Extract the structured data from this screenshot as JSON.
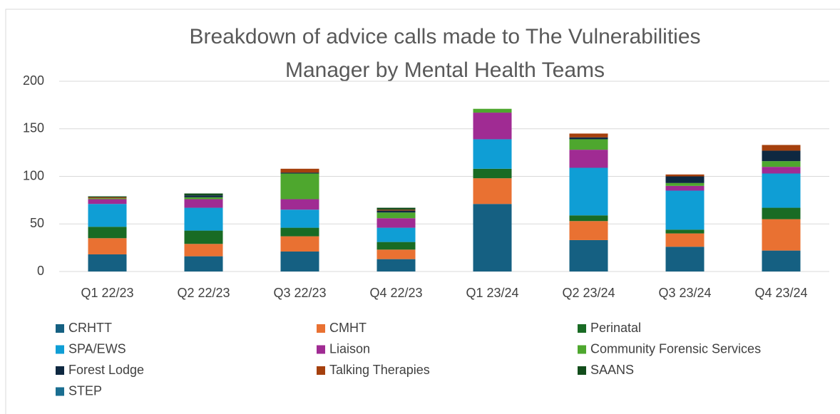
{
  "chart_data": {
    "type": "stacked_bar",
    "title": "Breakdown of advice calls made to The Vulnerabilities Manager by Mental Health Teams",
    "categories": [
      "Q1 22/23",
      "Q2 22/23",
      "Q3 22/23",
      "Q4 22/23",
      "Q1 23/24",
      "Q2 23/24",
      "Q3 23/24",
      "Q4 23/24"
    ],
    "series": [
      {
        "name": "CRHTT",
        "color": "#156082",
        "values": [
          18,
          16,
          21,
          13,
          71,
          33,
          26,
          22
        ]
      },
      {
        "name": "CMHT",
        "color": "#e97132",
        "values": [
          17,
          13,
          16,
          10,
          27,
          20,
          14,
          33
        ]
      },
      {
        "name": "Perinatal",
        "color": "#196b24",
        "values": [
          12,
          14,
          9,
          8,
          10,
          6,
          4,
          12
        ]
      },
      {
        "name": "SPA/EWS",
        "color": "#0f9ed5",
        "values": [
          24,
          24,
          19,
          15,
          31,
          50,
          41,
          36
        ]
      },
      {
        "name": "Liaison",
        "color": "#a02b93",
        "values": [
          5,
          9,
          11,
          10,
          28,
          19,
          5,
          7
        ]
      },
      {
        "name": "Community Forensic Services",
        "color": "#4ea72e",
        "values": [
          1,
          2,
          27,
          6,
          4,
          11,
          3,
          6
        ]
      },
      {
        "name": "Forest Lodge",
        "color": "#0e2841",
        "values": [
          0,
          2,
          1,
          2,
          0,
          2,
          7,
          11
        ]
      },
      {
        "name": "Talking Therapies",
        "color": "#a5400d",
        "values": [
          1,
          0,
          4,
          1,
          0,
          4,
          2,
          6
        ]
      },
      {
        "name": "SAANS",
        "color": "#124d1b",
        "values": [
          1,
          2,
          0,
          2,
          0,
          0,
          0,
          0
        ]
      },
      {
        "name": "STEP",
        "color": "#1a6e91",
        "values": [
          0,
          0,
          0,
          0,
          0,
          0,
          0,
          0
        ]
      }
    ],
    "ylim": [
      0,
      200
    ],
    "yticks": [
      0,
      50,
      100,
      150,
      200
    ],
    "grid": true,
    "legend": "bottom"
  }
}
